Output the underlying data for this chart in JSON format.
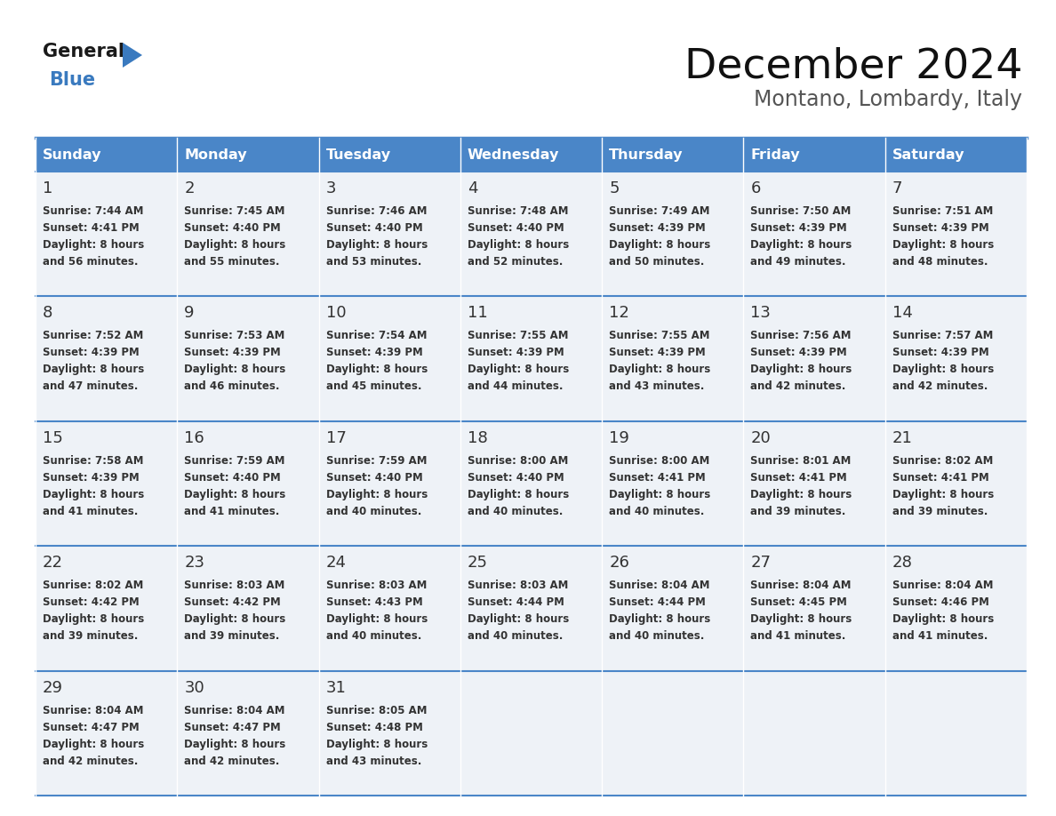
{
  "title": "December 2024",
  "subtitle": "Montano, Lombardy, Italy",
  "header_color": "#4a86c8",
  "header_text_color": "#ffffff",
  "cell_bg_color": "#eef2f7",
  "border_color": "#4a86c8",
  "day_names": [
    "Sunday",
    "Monday",
    "Tuesday",
    "Wednesday",
    "Thursday",
    "Friday",
    "Saturday"
  ],
  "days": [
    {
      "date": 1,
      "col": 0,
      "row": 0,
      "sunrise": "7:44 AM",
      "sunset": "4:41 PM",
      "daylight_line1": "Daylight: 8 hours",
      "daylight_line2": "and 56 minutes."
    },
    {
      "date": 2,
      "col": 1,
      "row": 0,
      "sunrise": "7:45 AM",
      "sunset": "4:40 PM",
      "daylight_line1": "Daylight: 8 hours",
      "daylight_line2": "and 55 minutes."
    },
    {
      "date": 3,
      "col": 2,
      "row": 0,
      "sunrise": "7:46 AM",
      "sunset": "4:40 PM",
      "daylight_line1": "Daylight: 8 hours",
      "daylight_line2": "and 53 minutes."
    },
    {
      "date": 4,
      "col": 3,
      "row": 0,
      "sunrise": "7:48 AM",
      "sunset": "4:40 PM",
      "daylight_line1": "Daylight: 8 hours",
      "daylight_line2": "and 52 minutes."
    },
    {
      "date": 5,
      "col": 4,
      "row": 0,
      "sunrise": "7:49 AM",
      "sunset": "4:39 PM",
      "daylight_line1": "Daylight: 8 hours",
      "daylight_line2": "and 50 minutes."
    },
    {
      "date": 6,
      "col": 5,
      "row": 0,
      "sunrise": "7:50 AM",
      "sunset": "4:39 PM",
      "daylight_line1": "Daylight: 8 hours",
      "daylight_line2": "and 49 minutes."
    },
    {
      "date": 7,
      "col": 6,
      "row": 0,
      "sunrise": "7:51 AM",
      "sunset": "4:39 PM",
      "daylight_line1": "Daylight: 8 hours",
      "daylight_line2": "and 48 minutes."
    },
    {
      "date": 8,
      "col": 0,
      "row": 1,
      "sunrise": "7:52 AM",
      "sunset": "4:39 PM",
      "daylight_line1": "Daylight: 8 hours",
      "daylight_line2": "and 47 minutes."
    },
    {
      "date": 9,
      "col": 1,
      "row": 1,
      "sunrise": "7:53 AM",
      "sunset": "4:39 PM",
      "daylight_line1": "Daylight: 8 hours",
      "daylight_line2": "and 46 minutes."
    },
    {
      "date": 10,
      "col": 2,
      "row": 1,
      "sunrise": "7:54 AM",
      "sunset": "4:39 PM",
      "daylight_line1": "Daylight: 8 hours",
      "daylight_line2": "and 45 minutes."
    },
    {
      "date": 11,
      "col": 3,
      "row": 1,
      "sunrise": "7:55 AM",
      "sunset": "4:39 PM",
      "daylight_line1": "Daylight: 8 hours",
      "daylight_line2": "and 44 minutes."
    },
    {
      "date": 12,
      "col": 4,
      "row": 1,
      "sunrise": "7:55 AM",
      "sunset": "4:39 PM",
      "daylight_line1": "Daylight: 8 hours",
      "daylight_line2": "and 43 minutes."
    },
    {
      "date": 13,
      "col": 5,
      "row": 1,
      "sunrise": "7:56 AM",
      "sunset": "4:39 PM",
      "daylight_line1": "Daylight: 8 hours",
      "daylight_line2": "and 42 minutes."
    },
    {
      "date": 14,
      "col": 6,
      "row": 1,
      "sunrise": "7:57 AM",
      "sunset": "4:39 PM",
      "daylight_line1": "Daylight: 8 hours",
      "daylight_line2": "and 42 minutes."
    },
    {
      "date": 15,
      "col": 0,
      "row": 2,
      "sunrise": "7:58 AM",
      "sunset": "4:39 PM",
      "daylight_line1": "Daylight: 8 hours",
      "daylight_line2": "and 41 minutes."
    },
    {
      "date": 16,
      "col": 1,
      "row": 2,
      "sunrise": "7:59 AM",
      "sunset": "4:40 PM",
      "daylight_line1": "Daylight: 8 hours",
      "daylight_line2": "and 41 minutes."
    },
    {
      "date": 17,
      "col": 2,
      "row": 2,
      "sunrise": "7:59 AM",
      "sunset": "4:40 PM",
      "daylight_line1": "Daylight: 8 hours",
      "daylight_line2": "and 40 minutes."
    },
    {
      "date": 18,
      "col": 3,
      "row": 2,
      "sunrise": "8:00 AM",
      "sunset": "4:40 PM",
      "daylight_line1": "Daylight: 8 hours",
      "daylight_line2": "and 40 minutes."
    },
    {
      "date": 19,
      "col": 4,
      "row": 2,
      "sunrise": "8:00 AM",
      "sunset": "4:41 PM",
      "daylight_line1": "Daylight: 8 hours",
      "daylight_line2": "and 40 minutes."
    },
    {
      "date": 20,
      "col": 5,
      "row": 2,
      "sunrise": "8:01 AM",
      "sunset": "4:41 PM",
      "daylight_line1": "Daylight: 8 hours",
      "daylight_line2": "and 39 minutes."
    },
    {
      "date": 21,
      "col": 6,
      "row": 2,
      "sunrise": "8:02 AM",
      "sunset": "4:41 PM",
      "daylight_line1": "Daylight: 8 hours",
      "daylight_line2": "and 39 minutes."
    },
    {
      "date": 22,
      "col": 0,
      "row": 3,
      "sunrise": "8:02 AM",
      "sunset": "4:42 PM",
      "daylight_line1": "Daylight: 8 hours",
      "daylight_line2": "and 39 minutes."
    },
    {
      "date": 23,
      "col": 1,
      "row": 3,
      "sunrise": "8:03 AM",
      "sunset": "4:42 PM",
      "daylight_line1": "Daylight: 8 hours",
      "daylight_line2": "and 39 minutes."
    },
    {
      "date": 24,
      "col": 2,
      "row": 3,
      "sunrise": "8:03 AM",
      "sunset": "4:43 PM",
      "daylight_line1": "Daylight: 8 hours",
      "daylight_line2": "and 40 minutes."
    },
    {
      "date": 25,
      "col": 3,
      "row": 3,
      "sunrise": "8:03 AM",
      "sunset": "4:44 PM",
      "daylight_line1": "Daylight: 8 hours",
      "daylight_line2": "and 40 minutes."
    },
    {
      "date": 26,
      "col": 4,
      "row": 3,
      "sunrise": "8:04 AM",
      "sunset": "4:44 PM",
      "daylight_line1": "Daylight: 8 hours",
      "daylight_line2": "and 40 minutes."
    },
    {
      "date": 27,
      "col": 5,
      "row": 3,
      "sunrise": "8:04 AM",
      "sunset": "4:45 PM",
      "daylight_line1": "Daylight: 8 hours",
      "daylight_line2": "and 41 minutes."
    },
    {
      "date": 28,
      "col": 6,
      "row": 3,
      "sunrise": "8:04 AM",
      "sunset": "4:46 PM",
      "daylight_line1": "Daylight: 8 hours",
      "daylight_line2": "and 41 minutes."
    },
    {
      "date": 29,
      "col": 0,
      "row": 4,
      "sunrise": "8:04 AM",
      "sunset": "4:47 PM",
      "daylight_line1": "Daylight: 8 hours",
      "daylight_line2": "and 42 minutes."
    },
    {
      "date": 30,
      "col": 1,
      "row": 4,
      "sunrise": "8:04 AM",
      "sunset": "4:47 PM",
      "daylight_line1": "Daylight: 8 hours",
      "daylight_line2": "and 42 minutes."
    },
    {
      "date": 31,
      "col": 2,
      "row": 4,
      "sunrise": "8:05 AM",
      "sunset": "4:48 PM",
      "daylight_line1": "Daylight: 8 hours",
      "daylight_line2": "and 43 minutes."
    }
  ],
  "logo_color_general": "#1a1a1a",
  "logo_color_blue": "#3a7abf",
  "logo_triangle_color": "#3a7abf",
  "text_color": "#333333",
  "date_num_size": 13,
  "info_font_size": 8.5,
  "header_font_size": 11.5,
  "title_font_size": 34,
  "subtitle_font_size": 17
}
